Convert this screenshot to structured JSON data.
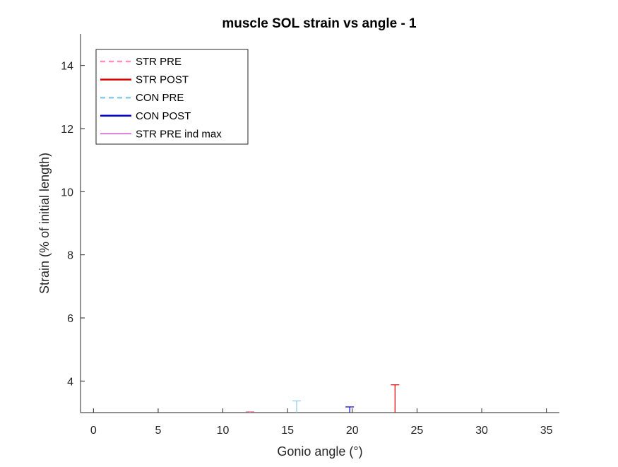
{
  "chart_data": {
    "type": "line",
    "title": "muscle SOL strain vs angle - 1",
    "xlabel": "Gonio angle (°)",
    "ylabel": "Strain (% of initial length)",
    "xlim": [
      -1,
      36
    ],
    "ylim": [
      3,
      15
    ],
    "xticks": [
      "0",
      "5",
      "10",
      "15",
      "20",
      "25",
      "30",
      "35"
    ],
    "yticks": [
      "4",
      "6",
      "8",
      "10",
      "12",
      "14"
    ],
    "legend_position": "top-left",
    "legend": [
      {
        "label": "STR PRE",
        "color": "#ff8fbf",
        "style": "dashed"
      },
      {
        "label": "STR POST",
        "color": "#dd0000",
        "style": "solid"
      },
      {
        "label": "CON PRE",
        "color": "#88ccee",
        "style": "dashed"
      },
      {
        "label": "CON POST",
        "color": "#0000cc",
        "style": "solid"
      },
      {
        "label": "STR PRE ind max",
        "color": "#cc00cc",
        "style": "thin"
      }
    ],
    "errorbars": [
      {
        "series": "STR PRE",
        "x": 12.1,
        "y_from": 3.0,
        "y_to": 3.03,
        "color": "#ff8fbf"
      },
      {
        "series": "CON PRE",
        "x": 15.7,
        "y_from": 3.0,
        "y_to": 3.37,
        "color": "#88ccee"
      },
      {
        "series": "CON POST",
        "x": 19.8,
        "y_from": 3.0,
        "y_to": 3.18,
        "color": "#0000cc"
      },
      {
        "series": "STR POST",
        "x": 23.3,
        "y_from": 3.0,
        "y_to": 3.88,
        "color": "#dd0000"
      }
    ]
  }
}
